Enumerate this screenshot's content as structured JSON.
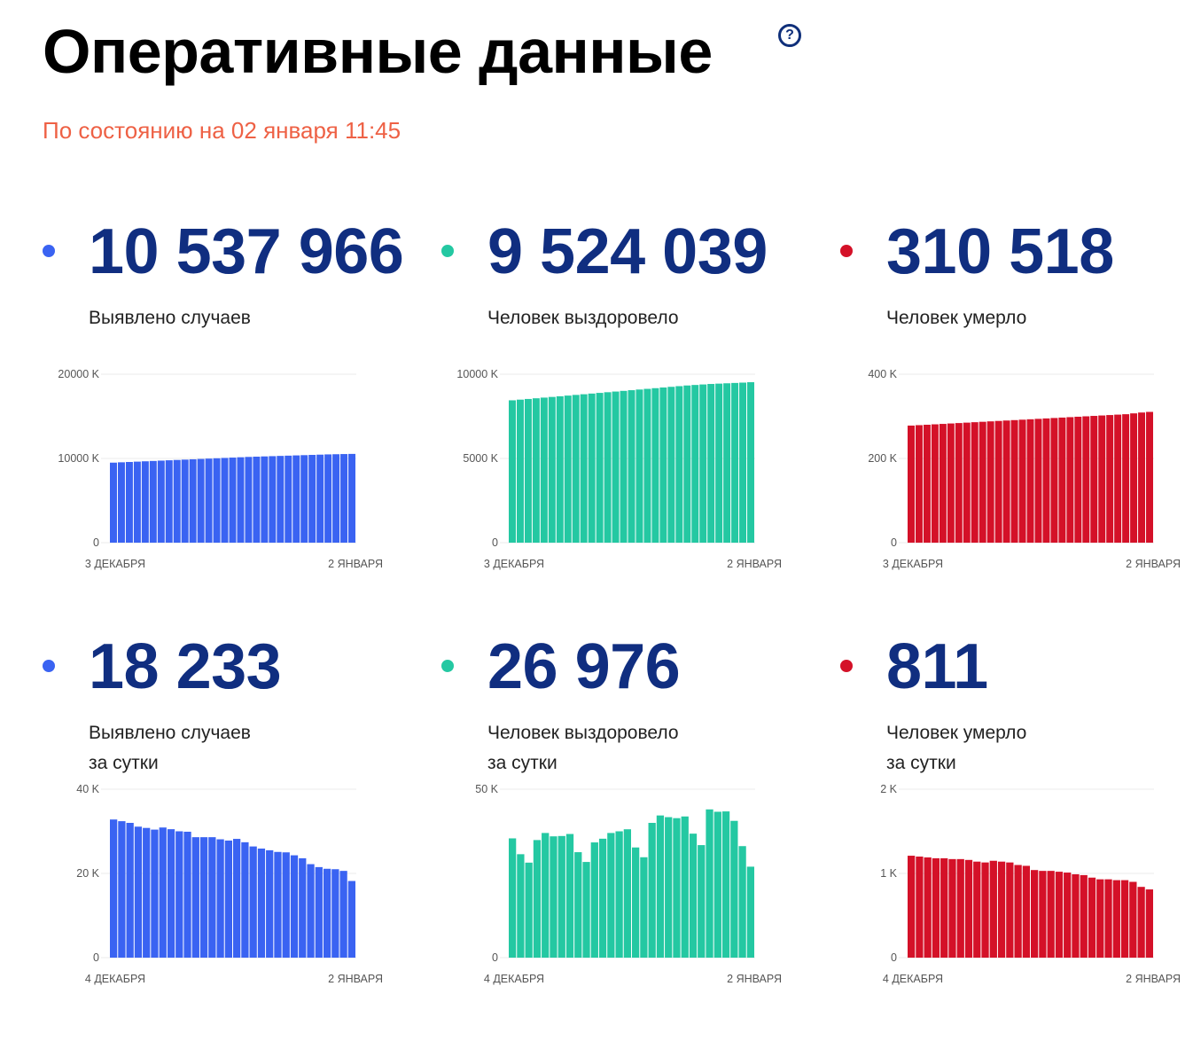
{
  "header": {
    "title": "Оперативные данные",
    "help_icon": "question-circle-icon",
    "help_symbol": "?",
    "as_of": "По состоянию на 02 января 11:45"
  },
  "colors": {
    "cases": "#3a63f2",
    "recovered": "#24c8a2",
    "deaths": "#d41128",
    "number": "#102e80",
    "as_of": "#ee6145"
  },
  "stats": [
    {
      "value": "10 537 966",
      "label_lines": [
        "Выявлено случаев"
      ],
      "color": "#3a63f2"
    },
    {
      "value": "9 524 039",
      "label_lines": [
        "Человек выздоровело"
      ],
      "color": "#24c8a2"
    },
    {
      "value": "310 518",
      "label_lines": [
        "Человек умерло"
      ],
      "color": "#d41128"
    },
    {
      "value": "18 233",
      "label_lines": [
        "Выявлено случаев",
        "за сутки"
      ],
      "color": "#3a63f2"
    },
    {
      "value": "26 976",
      "label_lines": [
        "Человек выздоровело",
        "за сутки"
      ],
      "color": "#24c8a2"
    },
    {
      "value": "811",
      "label_lines": [
        "Человек умерло",
        "за сутки"
      ],
      "color": "#d41128"
    }
  ],
  "chart_data": [
    {
      "type": "bar",
      "x_start": "3 ДЕКАБРЯ",
      "x_end": "2 ЯНВАРЯ",
      "ylim": [
        0,
        20000
      ],
      "y_ticks": [
        0,
        10000,
        20000
      ],
      "y_tick_labels": [
        "0",
        "10000 K",
        "20000 K"
      ],
      "color": "#3a63f2",
      "values": [
        9500,
        9540,
        9580,
        9620,
        9660,
        9700,
        9740,
        9780,
        9820,
        9860,
        9900,
        9940,
        9980,
        10020,
        10060,
        10100,
        10140,
        10180,
        10210,
        10240,
        10270,
        10300,
        10330,
        10360,
        10390,
        10420,
        10450,
        10480,
        10500,
        10520,
        10538
      ]
    },
    {
      "type": "bar",
      "x_start": "3 ДЕКАБРЯ",
      "x_end": "2 ЯНВАРЯ",
      "ylim": [
        0,
        10000
      ],
      "y_ticks": [
        0,
        5000,
        10000
      ],
      "y_tick_labels": [
        "0",
        "5000 K",
        "10000 K"
      ],
      "color": "#24c8a2",
      "values": [
        8450,
        8490,
        8530,
        8570,
        8610,
        8650,
        8690,
        8730,
        8770,
        8810,
        8850,
        8890,
        8930,
        8970,
        9010,
        9050,
        9090,
        9130,
        9170,
        9210,
        9250,
        9290,
        9330,
        9360,
        9390,
        9420,
        9440,
        9460,
        9480,
        9500,
        9524
      ]
    },
    {
      "type": "bar",
      "x_start": "3 ДЕКАБРЯ",
      "x_end": "2 ЯНВАРЯ",
      "ylim": [
        0,
        400
      ],
      "y_ticks": [
        0,
        200,
        400
      ],
      "y_tick_labels": [
        "0",
        "200 K",
        "400 K"
      ],
      "color": "#d41128",
      "values": [
        278,
        279,
        280,
        281,
        282,
        283,
        284,
        285,
        286,
        287,
        288,
        289,
        290,
        291,
        292,
        293,
        294,
        295,
        296,
        297,
        298,
        299,
        300,
        301,
        302,
        303,
        304,
        305,
        307,
        309,
        310.5
      ]
    },
    {
      "type": "bar",
      "x_start": "4 ДЕКАБРЯ",
      "x_end": "2 ЯНВАРЯ",
      "ylim": [
        0,
        40
      ],
      "y_ticks": [
        0,
        20,
        40
      ],
      "y_tick_labels": [
        "0",
        "20 K",
        "40 K"
      ],
      "color": "#3a63f2",
      "values": [
        32.8,
        32.4,
        32.0,
        31.1,
        30.8,
        30.4,
        30.9,
        30.5,
        30.0,
        29.9,
        28.6,
        28.6,
        28.6,
        28.1,
        27.8,
        28.2,
        27.4,
        26.4,
        25.9,
        25.5,
        25.1,
        25.0,
        24.3,
        23.6,
        22.2,
        21.5,
        21.1,
        21.0,
        20.6,
        18.2
      ]
    },
    {
      "type": "bar",
      "x_start": "4 ДЕКАБРЯ",
      "x_end": "2 ЯНВАРЯ",
      "ylim": [
        0,
        50
      ],
      "y_ticks": [
        0,
        50
      ],
      "y_tick_labels": [
        "0",
        "50 K"
      ],
      "color": "#24c8a2",
      "values": [
        35.4,
        30.7,
        28.2,
        34.9,
        37.0,
        36.0,
        36.1,
        36.7,
        31.3,
        28.4,
        34.2,
        35.3,
        37.0,
        37.5,
        38.1,
        32.7,
        29.8,
        40.0,
        42.2,
        41.7,
        41.4,
        41.9,
        36.8,
        33.4,
        44.0,
        43.3,
        43.4,
        40.6,
        33.1,
        27.0
      ]
    },
    {
      "type": "bar",
      "x_start": "4 ДЕКАБРЯ",
      "x_end": "2 ЯНВАРЯ",
      "ylim": [
        0,
        2
      ],
      "y_ticks": [
        0,
        1,
        2
      ],
      "y_tick_labels": [
        "0",
        "1 K",
        "2 K"
      ],
      "color": "#d41128",
      "values": [
        1.21,
        1.2,
        1.19,
        1.18,
        1.18,
        1.17,
        1.17,
        1.16,
        1.14,
        1.13,
        1.15,
        1.14,
        1.13,
        1.1,
        1.09,
        1.04,
        1.03,
        1.03,
        1.02,
        1.01,
        0.99,
        0.98,
        0.95,
        0.93,
        0.93,
        0.92,
        0.92,
        0.9,
        0.84,
        0.81
      ]
    }
  ]
}
